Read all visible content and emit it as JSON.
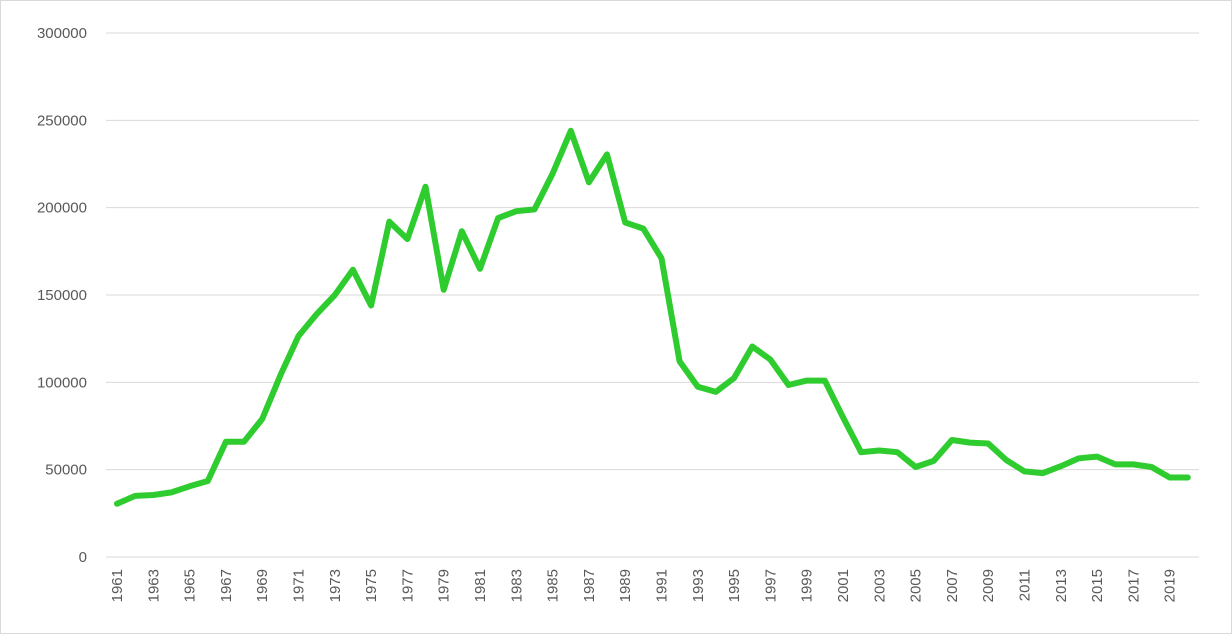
{
  "chart_data": {
    "type": "line",
    "title": "",
    "xlabel": "",
    "ylabel": "",
    "ylim": [
      0,
      300000
    ],
    "y_ticks": [
      0,
      50000,
      100000,
      150000,
      200000,
      250000,
      300000
    ],
    "y_tick_labels": [
      "0",
      "50000",
      "100000",
      "150000",
      "200000",
      "250000",
      "300000"
    ],
    "x_tick_labels": [
      "1961",
      "1963",
      "1965",
      "1967",
      "1969",
      "1971",
      "1973",
      "1975",
      "1977",
      "1979",
      "1981",
      "1983",
      "1985",
      "1987",
      "1989",
      "1991",
      "1993",
      "1995",
      "1997",
      "1999",
      "2001",
      "2003",
      "2005",
      "2007",
      "2009",
      "2011",
      "2013",
      "2015",
      "2017",
      "2019"
    ],
    "grid": true,
    "legend": "none",
    "color": "#2ecc2e",
    "x": [
      1961,
      1962,
      1963,
      1964,
      1965,
      1966,
      1967,
      1968,
      1969,
      1970,
      1971,
      1972,
      1973,
      1974,
      1975,
      1976,
      1977,
      1978,
      1979,
      1980,
      1981,
      1982,
      1983,
      1984,
      1985,
      1986,
      1987,
      1988,
      1989,
      1990,
      1991,
      1992,
      1993,
      1994,
      1995,
      1996,
      1997,
      1998,
      1999,
      2000,
      2001,
      2002,
      2003,
      2004,
      2005,
      2006,
      2007,
      2008,
      2009,
      2010,
      2011,
      2012,
      2013,
      2014,
      2015,
      2016,
      2017,
      2018,
      2019,
      2020
    ],
    "values": [
      30500,
      35000,
      35500,
      37000,
      40500,
      43500,
      66000,
      66000,
      79000,
      104000,
      126500,
      139000,
      150000,
      164500,
      144000,
      192000,
      182000,
      212000,
      153000,
      186500,
      165000,
      194000,
      198000,
      199000,
      219500,
      244000,
      214500,
      230500,
      191500,
      188000,
      171000,
      112000,
      97500,
      94500,
      102500,
      120500,
      113000,
      98500,
      101000,
      101000,
      80000,
      60000,
      61000,
      60000,
      51500,
      55000,
      67000,
      65500,
      65000,
      55500,
      49000,
      48000,
      52000,
      56500,
      57500,
      53000,
      53000,
      51500,
      45500,
      45500
    ]
  }
}
